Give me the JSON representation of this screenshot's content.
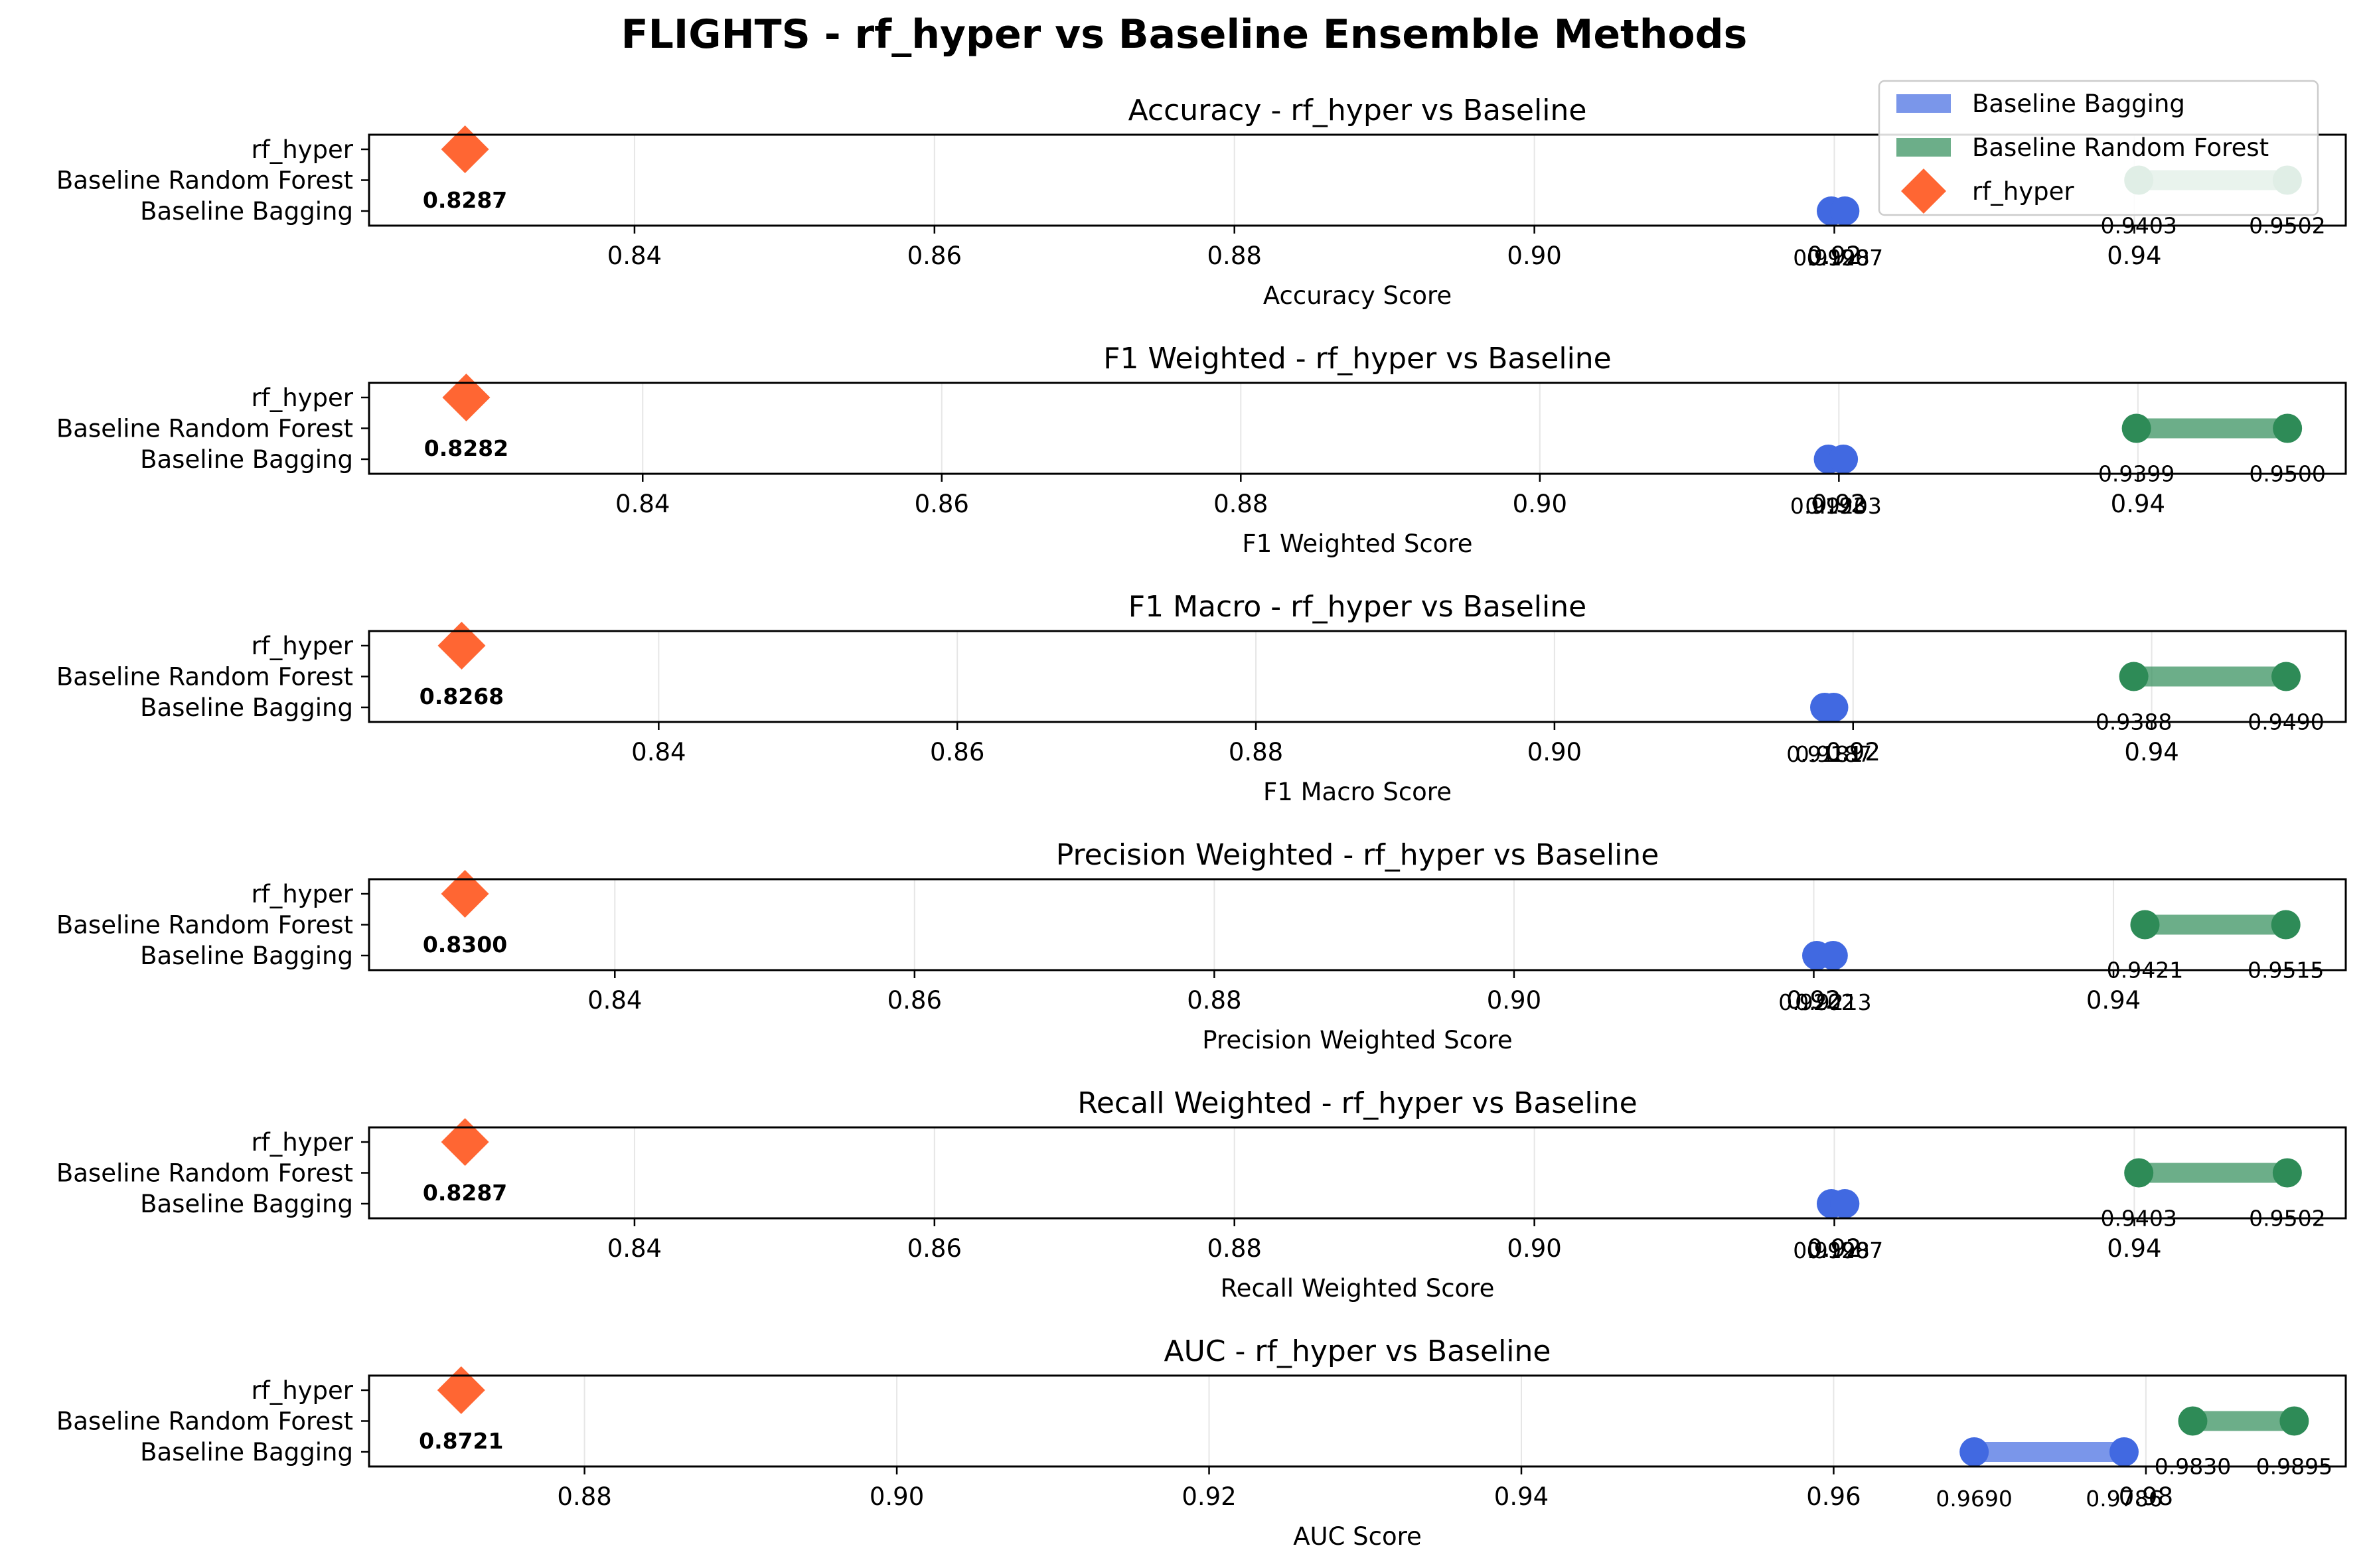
{
  "title": "FLIGHTS - rf_hyper vs Baseline Ensemble Methods",
  "colors": {
    "bagging": "#4169e1",
    "random_forest": "#2e8b57",
    "rf_hyper": "#ff6633"
  },
  "legend": {
    "placement": "top-right",
    "items": [
      "Baseline Bagging",
      "Baseline Random Forest",
      "rf_hyper"
    ]
  },
  "chart_data": [
    {
      "type": "dumbbell",
      "title": "Accuracy - rf_hyper vs Baseline",
      "xlabel": "Accuracy Score",
      "categories": [
        "Baseline Bagging",
        "Baseline Random Forest",
        "rf_hyper"
      ],
      "xlim": [
        0.8223,
        0.9541
      ],
      "xticks": [
        0.84,
        0.86,
        0.88,
        0.9,
        0.92,
        0.94
      ],
      "xtick_labels": [
        "0.84",
        "0.86",
        "0.88",
        "0.90",
        "0.92",
        "0.94"
      ],
      "bagging": [
        0.9198,
        0.9207
      ],
      "bagging_labels": [
        "0.9198",
        "0.9207"
      ],
      "random_forest": [
        0.9403,
        0.9502
      ],
      "random_forest_labels": [
        "0.9403",
        "0.9502"
      ],
      "rf_hyper": 0.8287,
      "rf_hyper_label": "0.8287"
    },
    {
      "type": "dumbbell",
      "title": "F1 Weighted - rf_hyper vs Baseline",
      "xlabel": "F1 Weighted Score",
      "categories": [
        "Baseline Bagging",
        "Baseline Random Forest",
        "rf_hyper"
      ],
      "xlim": [
        0.8217,
        0.9539
      ],
      "xticks": [
        0.84,
        0.86,
        0.88,
        0.9,
        0.92,
        0.94
      ],
      "xtick_labels": [
        "0.84",
        "0.86",
        "0.88",
        "0.90",
        "0.92",
        "0.94"
      ],
      "bagging": [
        0.9193,
        0.9203
      ],
      "bagging_labels": [
        "0.9193",
        "0.9203"
      ],
      "random_forest": [
        0.9399,
        0.95
      ],
      "random_forest_labels": [
        "0.9399",
        "0.9500"
      ],
      "rf_hyper": 0.8282,
      "rf_hyper_label": "0.8282"
    },
    {
      "type": "dumbbell",
      "title": "F1 Macro - rf_hyper vs Baseline",
      "xlabel": "F1 Macro Score",
      "categories": [
        "Baseline Bagging",
        "Baseline Random Forest",
        "rf_hyper"
      ],
      "xlim": [
        0.8206,
        0.953
      ],
      "xticks": [
        0.84,
        0.86,
        0.88,
        0.9,
        0.92,
        0.94
      ],
      "xtick_labels": [
        "0.84",
        "0.86",
        "0.88",
        "0.90",
        "0.92",
        "0.94"
      ],
      "bagging": [
        0.9181,
        0.9187
      ],
      "bagging_labels": [
        "0.9181",
        "0.9187"
      ],
      "random_forest": [
        0.9388,
        0.949
      ],
      "random_forest_labels": [
        "0.9388",
        "0.9490"
      ],
      "rf_hyper": 0.8268,
      "rf_hyper_label": "0.8268"
    },
    {
      "type": "dumbbell",
      "title": "Precision Weighted - rf_hyper vs Baseline",
      "xlabel": "Precision Weighted Score",
      "categories": [
        "Baseline Bagging",
        "Baseline Random Forest",
        "rf_hyper"
      ],
      "xlim": [
        0.8236,
        0.9555
      ],
      "xticks": [
        0.84,
        0.86,
        0.88,
        0.9,
        0.92,
        0.94
      ],
      "xtick_labels": [
        "0.84",
        "0.86",
        "0.88",
        "0.90",
        "0.92",
        "0.94"
      ],
      "bagging": [
        0.9202,
        0.9213
      ],
      "bagging_labels": [
        "0.9202",
        "0.9213"
      ],
      "random_forest": [
        0.9421,
        0.9515
      ],
      "random_forest_labels": [
        "0.9421",
        "0.9515"
      ],
      "rf_hyper": 0.83,
      "rf_hyper_label": "0.8300"
    },
    {
      "type": "dumbbell",
      "title": "Recall Weighted - rf_hyper vs Baseline",
      "xlabel": "Recall Weighted Score",
      "categories": [
        "Baseline Bagging",
        "Baseline Random Forest",
        "rf_hyper"
      ],
      "xlim": [
        0.8223,
        0.9541
      ],
      "xticks": [
        0.84,
        0.86,
        0.88,
        0.9,
        0.92,
        0.94
      ],
      "xtick_labels": [
        "0.84",
        "0.86",
        "0.88",
        "0.90",
        "0.92",
        "0.94"
      ],
      "bagging": [
        0.9198,
        0.9207
      ],
      "bagging_labels": [
        "0.9198",
        "0.9207"
      ],
      "random_forest": [
        0.9403,
        0.9502
      ],
      "random_forest_labels": [
        "0.9403",
        "0.9502"
      ],
      "rf_hyper": 0.8287,
      "rf_hyper_label": "0.8287"
    },
    {
      "type": "dumbbell",
      "title": "AUC - rf_hyper vs Baseline",
      "xlabel": "AUC Score",
      "categories": [
        "Baseline Bagging",
        "Baseline Random Forest",
        "rf_hyper"
      ],
      "xlim": [
        0.8662,
        0.9928
      ],
      "xticks": [
        0.88,
        0.9,
        0.92,
        0.94,
        0.96,
        0.98
      ],
      "xtick_labels": [
        "0.88",
        "0.90",
        "0.92",
        "0.94",
        "0.96",
        "0.98"
      ],
      "bagging": [
        0.969,
        0.9786
      ],
      "bagging_labels": [
        "0.9690",
        "0.9786"
      ],
      "random_forest": [
        0.983,
        0.9895
      ],
      "random_forest_labels": [
        "0.9830",
        "0.9895"
      ],
      "rf_hyper": 0.8721,
      "rf_hyper_label": "0.8721"
    }
  ]
}
